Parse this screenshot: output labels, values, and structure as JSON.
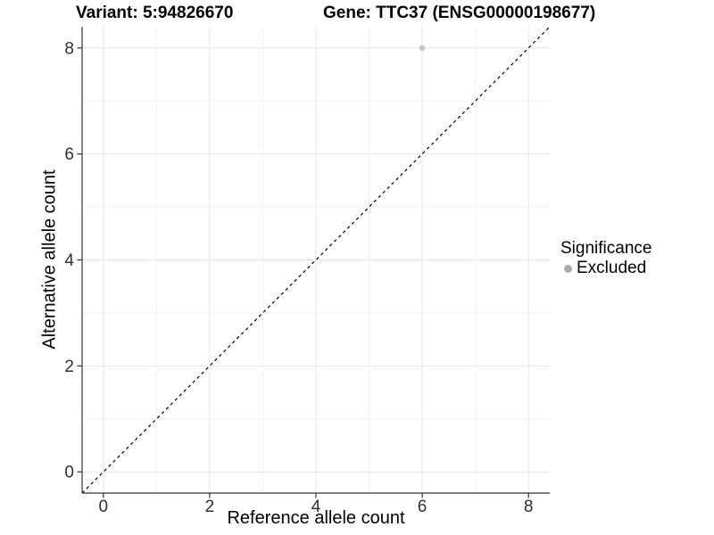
{
  "titles": {
    "variant": "Variant: 5:94826670",
    "gene": "Gene: TTC37 (ENSG00000198677)"
  },
  "legend": {
    "title": "Significance",
    "items": [
      {
        "label": "Excluded",
        "color": "#ababab"
      }
    ]
  },
  "colors": {
    "background": "#ffffff",
    "grid_major": "#e4e4e4",
    "grid_minor": "#f2f2f2",
    "axis": "#333333",
    "tick_label": "#303030",
    "point": "#c3c3c3",
    "reference_line": "#000000"
  },
  "chart_data": {
    "type": "scatter",
    "title": "Variant: 5:94826670   Gene: TTC37 (ENSG00000198677)",
    "xlabel": "Reference allele count",
    "ylabel": "Alternative allele count",
    "xlim": [
      -0.4,
      8.4
    ],
    "ylim": [
      -0.4,
      8.4
    ],
    "x_ticks": [
      0,
      2,
      4,
      6,
      8
    ],
    "y_ticks": [
      0,
      2,
      4,
      6,
      8
    ],
    "x_minor_ticks": [
      1,
      3,
      5,
      7
    ],
    "y_minor_ticks": [
      1,
      3,
      5,
      7
    ],
    "grid": "on",
    "legend_position": "right",
    "series": [
      {
        "name": "Excluded",
        "color": "#c3c3c3",
        "points": [
          {
            "x": 6,
            "y": 8
          }
        ]
      }
    ],
    "reference_line": {
      "style": "dashed",
      "slope": 1,
      "intercept": 0,
      "color": "#000000",
      "note": "identity line y = x drawn corner to corner"
    }
  }
}
